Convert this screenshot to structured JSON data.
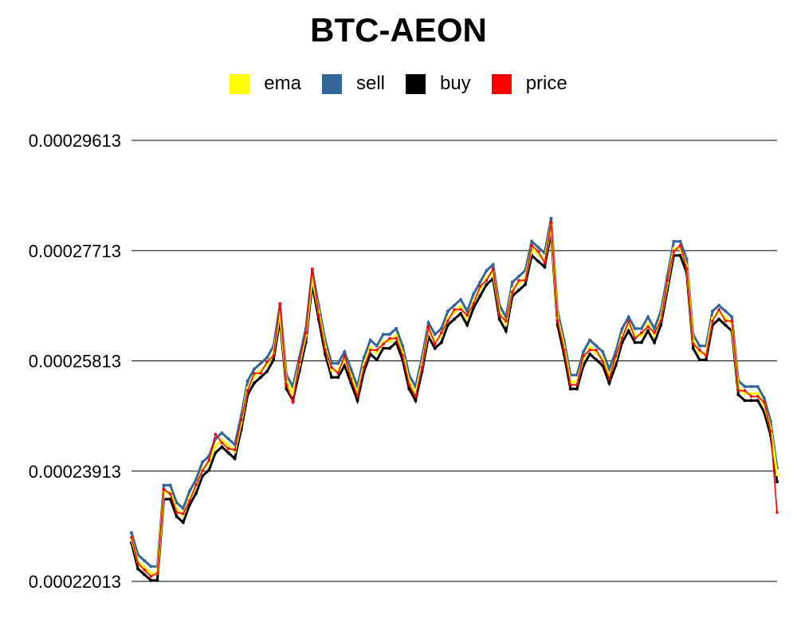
{
  "chart_data": {
    "type": "line",
    "title": "BTC-AEON",
    "ylim": [
      0.00022013,
      0.00029613
    ],
    "y_ticks": [
      "0.00022013",
      "0.00023913",
      "0.00025813",
      "0.00027713",
      "0.00029613"
    ],
    "grid": true,
    "legend_position": "top-center",
    "x": [
      0,
      2,
      4,
      6,
      8,
      10,
      12,
      14,
      16,
      18,
      20,
      22,
      24,
      26,
      28,
      30,
      32,
      34,
      36,
      38,
      40,
      42,
      44,
      46,
      48,
      50,
      52,
      54,
      56,
      58,
      60,
      62,
      64,
      66,
      68,
      70,
      72,
      74,
      76,
      78,
      80,
      82,
      84,
      86,
      88,
      90,
      92,
      94,
      96,
      98,
      100,
      102,
      104,
      106,
      108,
      110,
      112,
      114,
      116,
      118,
      120,
      122,
      124,
      126,
      128,
      130,
      132,
      134,
      136,
      138,
      140,
      142,
      144,
      146,
      148,
      150,
      152,
      154,
      156,
      158,
      160,
      162,
      164,
      166,
      168,
      170,
      172,
      174,
      176,
      178,
      180,
      182,
      184,
      186,
      188,
      190,
      192,
      194,
      196,
      198,
      200
    ],
    "series": [
      {
        "name": "ema",
        "color": "#ffff00",
        "values": [
          0.0002275,
          0.0002235,
          0.0002225,
          0.0002215,
          0.0002215,
          0.0002355,
          0.0002355,
          0.0002325,
          0.0002315,
          0.0002345,
          0.0002365,
          0.0002395,
          0.0002405,
          0.0002435,
          0.0002445,
          0.0002435,
          0.0002425,
          0.0002475,
          0.0002535,
          0.0002555,
          0.0002565,
          0.0002575,
          0.0002595,
          0.0002665,
          0.0002545,
          0.0002525,
          0.0002575,
          0.0002625,
          0.0002725,
          0.0002665,
          0.0002605,
          0.0002565,
          0.0002565,
          0.0002585,
          0.0002555,
          0.0002525,
          0.0002575,
          0.0002605,
          0.0002595,
          0.0002615,
          0.0002615,
          0.0002625,
          0.0002595,
          0.0002545,
          0.0002525,
          0.0002575,
          0.0002635,
          0.0002615,
          0.0002625,
          0.0002655,
          0.0002665,
          0.0002675,
          0.0002655,
          0.0002685,
          0.0002705,
          0.0002725,
          0.0002735,
          0.0002665,
          0.0002645,
          0.0002705,
          0.0002715,
          0.0002725,
          0.0002775,
          0.0002765,
          0.0002755,
          0.0002815,
          0.0002655,
          0.0002605,
          0.0002545,
          0.0002545,
          0.0002585,
          0.0002605,
          0.0002595,
          0.0002585,
          0.0002555,
          0.0002585,
          0.0002625,
          0.0002645,
          0.0002625,
          0.0002625,
          0.0002645,
          0.0002625,
          0.0002655,
          0.0002715,
          0.0002775,
          0.0002775,
          0.0002745,
          0.0002615,
          0.0002595,
          0.0002595,
          0.0002655,
          0.0002665,
          0.0002655,
          0.0002645,
          0.0002535,
          0.0002525,
          0.0002525,
          0.0002525,
          0.0002505,
          0.0002465,
          0.0002385
        ]
      },
      {
        "name": "sell",
        "color": "#336699",
        "values": [
          0.0002285,
          0.0002247,
          0.0002237,
          0.0002227,
          0.0002227,
          0.0002367,
          0.0002367,
          0.0002337,
          0.0002327,
          0.0002357,
          0.0002377,
          0.0002407,
          0.0002417,
          0.0002447,
          0.0002457,
          0.0002447,
          0.0002437,
          0.0002487,
          0.0002547,
          0.0002567,
          0.0002577,
          0.0002587,
          0.0002607,
          0.0002677,
          0.0002557,
          0.0002537,
          0.0002587,
          0.0002637,
          0.0002737,
          0.0002677,
          0.0002617,
          0.0002577,
          0.0002577,
          0.0002597,
          0.0002567,
          0.0002537,
          0.0002587,
          0.0002617,
          0.0002607,
          0.0002627,
          0.0002627,
          0.0002637,
          0.0002607,
          0.0002557,
          0.0002537,
          0.0002587,
          0.0002647,
          0.0002627,
          0.0002637,
          0.0002667,
          0.0002677,
          0.0002687,
          0.0002667,
          0.0002697,
          0.0002717,
          0.0002737,
          0.0002747,
          0.0002677,
          0.0002657,
          0.0002717,
          0.0002727,
          0.0002737,
          0.0002787,
          0.0002777,
          0.0002767,
          0.0002827,
          0.0002667,
          0.0002617,
          0.0002557,
          0.0002557,
          0.0002597,
          0.0002617,
          0.0002607,
          0.0002597,
          0.0002567,
          0.0002597,
          0.0002637,
          0.0002657,
          0.0002637,
          0.0002637,
          0.0002657,
          0.0002637,
          0.0002667,
          0.0002727,
          0.0002787,
          0.0002787,
          0.0002757,
          0.0002627,
          0.0002607,
          0.0002607,
          0.0002667,
          0.0002677,
          0.0002667,
          0.0002657,
          0.0002547,
          0.0002537,
          0.0002537,
          0.0002537,
          0.0002517,
          0.0002477,
          0.0002397
        ]
      },
      {
        "name": "buy",
        "color": "#000000",
        "values": [
          0.0002268,
          0.0002223,
          0.0002213,
          0.0002203,
          0.0002203,
          0.0002343,
          0.0002343,
          0.0002313,
          0.0002303,
          0.0002333,
          0.0002353,
          0.0002383,
          0.0002393,
          0.0002423,
          0.0002433,
          0.0002423,
          0.0002413,
          0.0002463,
          0.0002523,
          0.0002543,
          0.0002553,
          0.0002563,
          0.0002583,
          0.0002653,
          0.0002533,
          0.0002513,
          0.0002563,
          0.0002613,
          0.0002713,
          0.0002653,
          0.0002593,
          0.0002553,
          0.0002553,
          0.0002573,
          0.0002543,
          0.0002513,
          0.0002563,
          0.0002593,
          0.0002583,
          0.0002603,
          0.0002603,
          0.0002613,
          0.0002583,
          0.0002533,
          0.0002513,
          0.0002563,
          0.0002623,
          0.0002603,
          0.0002613,
          0.0002643,
          0.0002653,
          0.0002663,
          0.0002643,
          0.0002673,
          0.0002693,
          0.0002713,
          0.0002723,
          0.0002653,
          0.0002633,
          0.0002693,
          0.0002703,
          0.0002713,
          0.0002763,
          0.0002753,
          0.0002743,
          0.0002803,
          0.0002643,
          0.0002593,
          0.0002533,
          0.0002533,
          0.0002573,
          0.0002593,
          0.0002583,
          0.0002573,
          0.0002543,
          0.0002573,
          0.0002613,
          0.0002633,
          0.0002613,
          0.0002613,
          0.0002633,
          0.0002613,
          0.0002643,
          0.0002703,
          0.0002763,
          0.0002763,
          0.0002733,
          0.0002603,
          0.0002583,
          0.0002583,
          0.0002643,
          0.0002653,
          0.0002643,
          0.0002633,
          0.0002523,
          0.0002513,
          0.0002513,
          0.0002513,
          0.0002493,
          0.0002453,
          0.0002373
        ]
      },
      {
        "name": "price",
        "color": "#ff0000",
        "values": [
          0.0002277,
          0.0002232,
          0.0002221,
          0.000221,
          0.0002215,
          0.000236,
          0.0002352,
          0.000232,
          0.0002318,
          0.000234,
          0.0002368,
          0.0002392,
          0.000241,
          0.0002455,
          0.000244,
          0.000243,
          0.0002428,
          0.000248,
          0.000253,
          0.000256,
          0.000256,
          0.000258,
          0.000259,
          0.000268,
          0.000254,
          0.000251,
          0.000258,
          0.000263,
          0.000274,
          0.000266,
          0.00026,
          0.000257,
          0.000256,
          0.000259,
          0.000255,
          0.000252,
          0.000257,
          0.00026,
          0.00026,
          0.000261,
          0.000262,
          0.000262,
          0.000259,
          0.000254,
          0.000252,
          0.000257,
          0.000264,
          0.000261,
          0.000263,
          0.000265,
          0.000267,
          0.000267,
          0.000266,
          0.000268,
          0.000271,
          0.000272,
          0.000274,
          0.000266,
          0.000265,
          0.00027,
          0.000272,
          0.000272,
          0.000278,
          0.000277,
          0.000275,
          0.000282,
          0.000265,
          0.00026,
          0.000254,
          0.000254,
          0.000259,
          0.00026,
          0.00026,
          0.000258,
          0.000255,
          0.000259,
          0.000262,
          0.000265,
          0.000262,
          0.000263,
          0.000264,
          0.000263,
          0.000265,
          0.000272,
          0.000277,
          0.000278,
          0.000274,
          0.000261,
          0.00026,
          0.000259,
          0.000265,
          0.000267,
          0.000265,
          0.000265,
          0.000253,
          0.000253,
          0.000252,
          0.000252,
          0.000251,
          0.000246,
          0.000232
        ]
      }
    ]
  }
}
